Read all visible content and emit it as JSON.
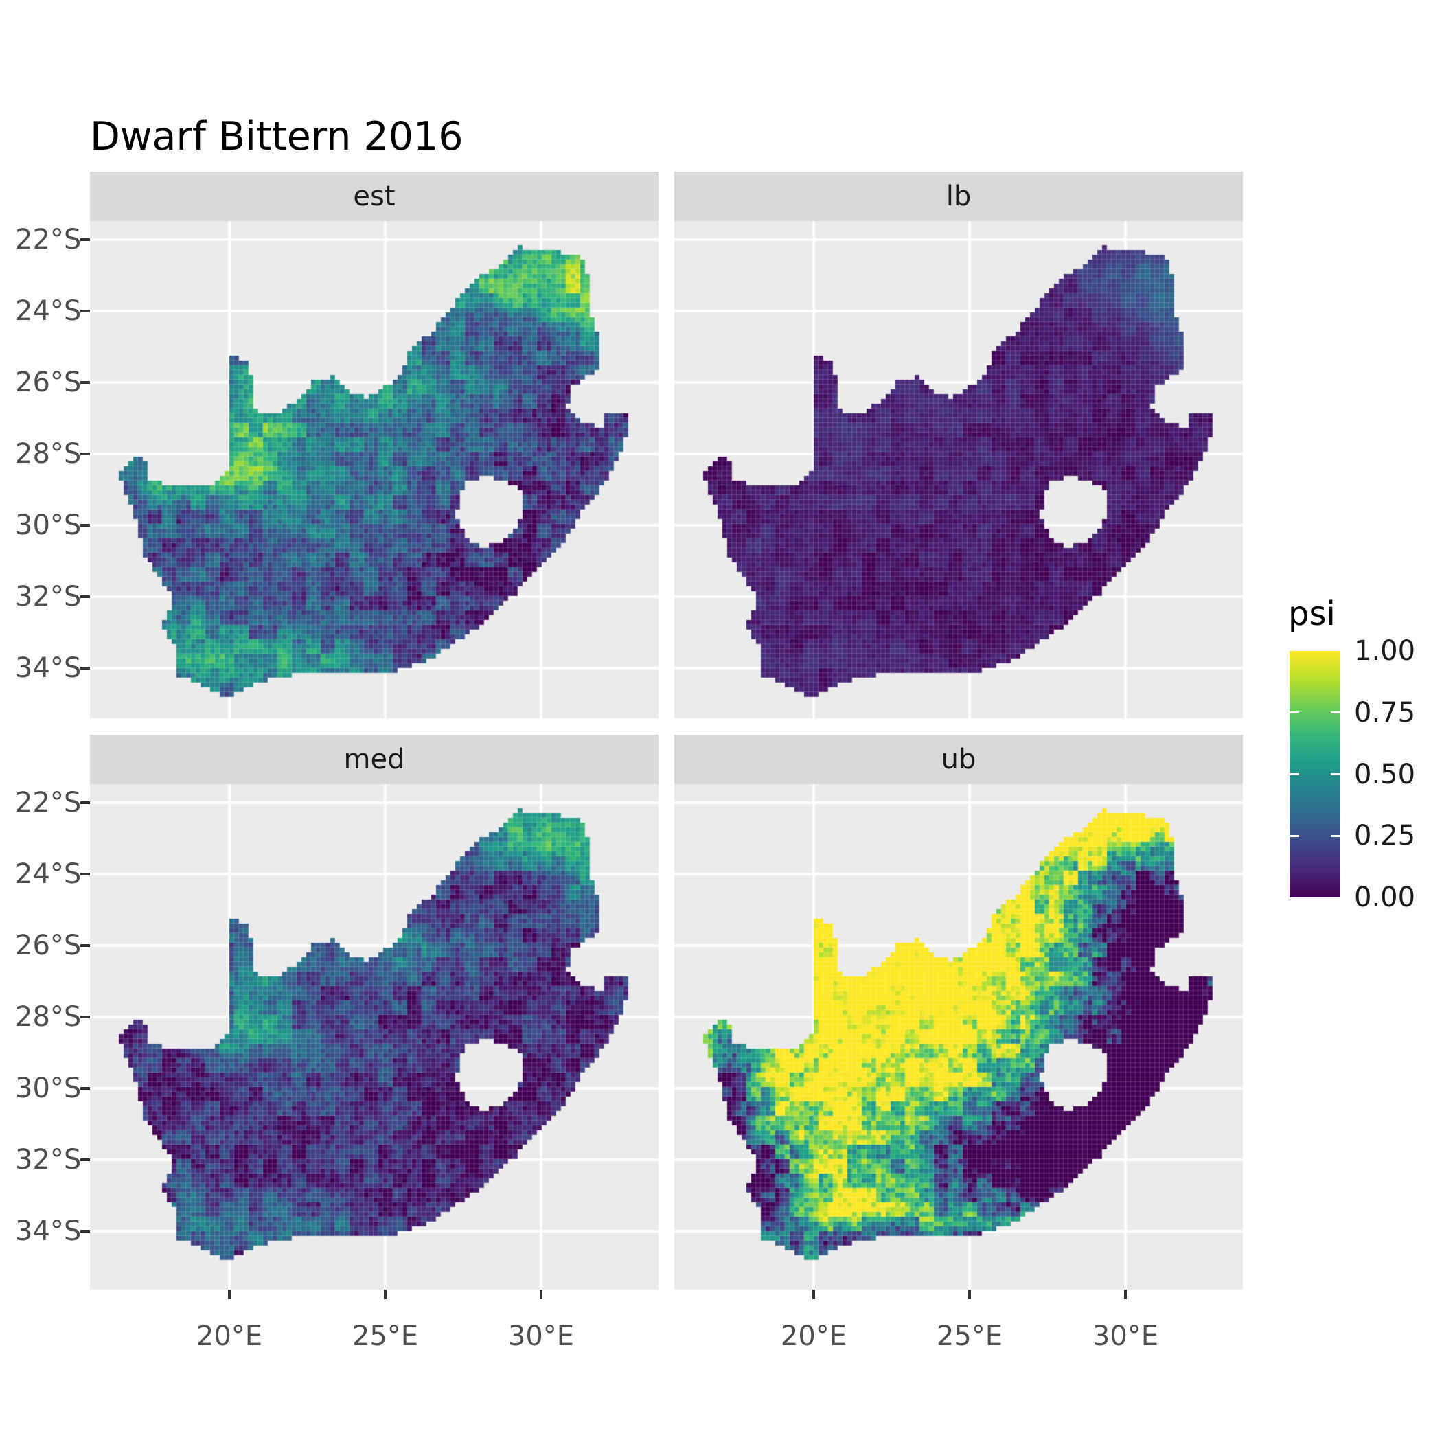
{
  "title": "Dwarf Bittern 2016",
  "colors": {
    "background": "#ffffff",
    "panel_bg": "#ebebeb",
    "strip_bg": "#d9d9d9",
    "gridline": "#ffffff",
    "axis_text": "#4d4d4d",
    "tick_mark": "#333333",
    "title_text": "#000000",
    "strip_text": "#1a1a1a"
  },
  "facets": [
    {
      "label": "est",
      "pattern": {
        "seed": 1,
        "base": 0.22,
        "noise": 0.33,
        "gain": 1.0,
        "blobs": [
          [
            29.4,
            23.0,
            2.1,
            0.85,
            0.48
          ],
          [
            31.4,
            23.6,
            0.9,
            1.1,
            0.3
          ],
          [
            24.8,
            26.1,
            2.6,
            0.85,
            0.28
          ],
          [
            20.8,
            27.2,
            1.0,
            1.2,
            0.38
          ],
          [
            19.3,
            28.5,
            1.4,
            0.45,
            0.34
          ],
          [
            17.8,
            28.8,
            0.8,
            0.5,
            0.3
          ],
          [
            23.5,
            28.9,
            2.4,
            1.2,
            0.2
          ],
          [
            21.6,
            33.9,
            2.3,
            0.7,
            0.33
          ],
          [
            18.8,
            33.2,
            0.7,
            0.9,
            0.25
          ],
          [
            28.7,
            31.3,
            2.2,
            1.6,
            -0.14
          ],
          [
            30.8,
            26.8,
            1.3,
            1.3,
            -0.1
          ]
        ]
      }
    },
    {
      "label": "lb",
      "pattern": {
        "seed": 2,
        "base": 0.05,
        "noise": 0.12,
        "gain": 1.0,
        "blobs": [
          [
            30.7,
            23.2,
            1.7,
            0.9,
            0.22
          ],
          [
            31.9,
            24.6,
            0.8,
            1.3,
            0.18
          ],
          [
            24.8,
            26.3,
            2.6,
            0.8,
            0.05
          ],
          [
            20.8,
            27.4,
            0.9,
            1.1,
            0.07
          ],
          [
            23.5,
            28.9,
            2.4,
            1.2,
            0.04
          ],
          [
            18.4,
            31.0,
            0.8,
            1.8,
            0.05
          ],
          [
            21.6,
            33.9,
            2.0,
            0.6,
            0.05
          ]
        ]
      }
    },
    {
      "label": "med",
      "pattern": {
        "seed": 3,
        "base": 0.1,
        "noise": 0.31,
        "gain": 1.0,
        "blobs": [
          [
            29.7,
            22.8,
            1.8,
            0.7,
            0.55
          ],
          [
            31.4,
            23.8,
            0.8,
            1.1,
            0.28
          ],
          [
            24.8,
            26.0,
            2.4,
            0.75,
            0.3
          ],
          [
            20.8,
            27.4,
            0.95,
            1.2,
            0.33
          ],
          [
            19.3,
            28.5,
            1.3,
            0.4,
            0.28
          ],
          [
            23.5,
            28.9,
            2.2,
            1.1,
            0.13
          ],
          [
            21.6,
            33.9,
            2.1,
            0.65,
            0.25
          ],
          [
            18.8,
            33.2,
            0.65,
            0.85,
            0.2
          ],
          [
            28.7,
            31.3,
            2.2,
            1.5,
            -0.08
          ]
        ]
      }
    },
    {
      "label": "ub",
      "pattern": {
        "seed": 4,
        "base": 0.88,
        "noise": 0.5,
        "gain": 1.15,
        "blobs": [
          [
            30.7,
            25.2,
            1.5,
            1.5,
            -1.0
          ],
          [
            30.2,
            29.6,
            2.0,
            1.8,
            -0.95
          ],
          [
            27.6,
            32.0,
            2.4,
            1.4,
            -0.75
          ],
          [
            31.9,
            27.6,
            1.0,
            1.3,
            -0.7
          ],
          [
            25.0,
            31.9,
            2.2,
            0.9,
            -0.4
          ],
          [
            17.3,
            30.5,
            0.65,
            1.9,
            -0.85
          ],
          [
            18.5,
            32.8,
            0.8,
            1.1,
            -0.75
          ],
          [
            22.5,
            34.5,
            3.0,
            0.5,
            -0.7
          ],
          [
            29.9,
            22.5,
            2.4,
            0.7,
            0.5
          ],
          [
            22.5,
            26.5,
            3.0,
            2.0,
            0.3
          ]
        ]
      }
    }
  ],
  "axes": {
    "y_ticks": [
      {
        "label": "22°S",
        "lat": 22
      },
      {
        "label": "24°S",
        "lat": 24
      },
      {
        "label": "26°S",
        "lat": 26
      },
      {
        "label": "28°S",
        "lat": 28
      },
      {
        "label": "30°S",
        "lat": 30
      },
      {
        "label": "32°S",
        "lat": 32
      },
      {
        "label": "34°S",
        "lat": 34
      }
    ],
    "x_ticks": [
      {
        "label": "20°E",
        "lon": 20
      },
      {
        "label": "25°E",
        "lon": 25
      },
      {
        "label": "30°E",
        "lon": 30
      }
    ]
  },
  "legend": {
    "title": "psi",
    "breaks": [
      {
        "label": "1.00",
        "value": 1.0
      },
      {
        "label": "0.75",
        "value": 0.75
      },
      {
        "label": "0.50",
        "value": 0.5
      },
      {
        "label": "0.25",
        "value": 0.25
      },
      {
        "label": "0.00",
        "value": 0.0
      }
    ],
    "bar_tick_values": [
      0.25,
      0.5,
      0.75
    ]
  },
  "chart_data": {
    "type": "heatmap",
    "subtype": "faceted raster occupancy maps of South Africa (ggplot2 style)",
    "title": "Dwarf Bittern 2016",
    "facet_labels": [
      "est",
      "lb",
      "med",
      "ub"
    ],
    "fill_variable": "psi",
    "fill_range": [
      0.0,
      1.0
    ],
    "legend_breaks": [
      0.0,
      0.25,
      0.5,
      0.75,
      1.0
    ],
    "legend_position": "right",
    "x_axis": {
      "tick_labels": [
        "20°E",
        "25°E",
        "30°E"
      ],
      "range_lon_east": [
        15.53,
        33.77
      ]
    },
    "y_axis": {
      "tick_labels": [
        "22°S",
        "24°S",
        "26°S",
        "28°S",
        "30°S",
        "32°S",
        "34°S"
      ],
      "range_lat_south": [
        21.48,
        35.55
      ]
    },
    "grid": {
      "lon": [
        20,
        25,
        30
      ],
      "lat": [
        22,
        24,
        26,
        28,
        30,
        32,
        34
      ],
      "major_color": "#ffffff",
      "panel_bg": "#ebebeb"
    },
    "facet_summaries": {
      "est": "moderate psi: dark purple base with teal/green band across Kalahari and northern rim, yellow-green along far northeast (Limpopo) and Orange River, teal along south coast",
      "lb": "near-zero psi everywhere (dark purple), faint teal speckle in northeast lobe",
      "med": "mostly low psi (dark) with green rim along northern border, yellow specks at northeast tip, teal south-coast patches",
      "ub": "high psi: widespread yellow across west/centre/north, dark purple over eastern escarpment, KwaZulu-Natal, around Lesotho and along southern/western coasts"
    },
    "colormap": {
      "name": "viridis",
      "stops": [
        [
          0,
          "#440154"
        ],
        [
          0.11,
          "#482878"
        ],
        [
          0.22,
          "#3e4989"
        ],
        [
          0.33,
          "#31688e"
        ],
        [
          0.44,
          "#26828e"
        ],
        [
          0.55,
          "#1f9e89"
        ],
        [
          0.66,
          "#35b779"
        ],
        [
          0.77,
          "#6dcd59"
        ],
        [
          0.88,
          "#b4de2c"
        ],
        [
          1,
          "#fde725"
        ]
      ]
    },
    "south_africa_outline_lon_latS": [
      [
        16.45,
        28.6
      ],
      [
        16.8,
        28.3
      ],
      [
        17.05,
        28.05
      ],
      [
        17.35,
        28.2
      ],
      [
        17.4,
        28.7
      ],
      [
        18.0,
        28.87
      ],
      [
        18.75,
        28.85
      ],
      [
        19.25,
        28.93
      ],
      [
        19.7,
        28.75
      ],
      [
        19.98,
        28.42
      ],
      [
        19.99,
        25.15
      ],
      [
        20.55,
        25.4
      ],
      [
        20.75,
        26.0
      ],
      [
        20.85,
        26.8
      ],
      [
        21.6,
        26.85
      ],
      [
        22.3,
        26.4
      ],
      [
        22.75,
        25.9
      ],
      [
        23.35,
        25.85
      ],
      [
        23.9,
        26.3
      ],
      [
        24.4,
        26.4
      ],
      [
        24.9,
        26.2
      ],
      [
        25.55,
        25.75
      ],
      [
        25.8,
        25.05
      ],
      [
        26.4,
        24.65
      ],
      [
        26.9,
        24.2
      ],
      [
        27.3,
        23.7
      ],
      [
        28.0,
        23.05
      ],
      [
        28.8,
        22.65
      ],
      [
        29.3,
        22.2
      ],
      [
        30.0,
        22.3
      ],
      [
        30.6,
        22.35
      ],
      [
        31.3,
        22.4
      ],
      [
        31.55,
        23.2
      ],
      [
        31.55,
        24.0
      ],
      [
        31.9,
        24.8
      ],
      [
        31.95,
        25.6
      ],
      [
        31.45,
        25.85
      ],
      [
        30.95,
        26.15
      ],
      [
        30.85,
        26.65
      ],
      [
        31.15,
        27.05
      ],
      [
        31.7,
        27.2
      ],
      [
        31.97,
        27.25
      ],
      [
        32.12,
        26.8
      ],
      [
        32.89,
        26.82
      ],
      [
        32.65,
        27.8
      ],
      [
        32.25,
        28.5
      ],
      [
        32.0,
        28.9
      ],
      [
        31.4,
        29.5
      ],
      [
        30.7,
        30.5
      ],
      [
        30.0,
        31.1
      ],
      [
        29.2,
        31.9
      ],
      [
        28.2,
        32.7
      ],
      [
        27.4,
        33.2
      ],
      [
        26.4,
        33.75
      ],
      [
        25.65,
        34.0
      ],
      [
        24.8,
        34.2
      ],
      [
        23.4,
        34.1
      ],
      [
        22.2,
        34.15
      ],
      [
        21.0,
        34.4
      ],
      [
        20.0,
        34.82
      ],
      [
        19.3,
        34.6
      ],
      [
        18.8,
        34.35
      ],
      [
        18.35,
        34.2
      ],
      [
        18.3,
        33.5
      ],
      [
        17.85,
        32.8
      ],
      [
        18.25,
        32.1
      ],
      [
        17.3,
        30.9
      ],
      [
        16.95,
        29.7
      ],
      [
        16.45,
        28.6
      ]
    ],
    "lesotho_hole_lon_latS": [
      [
        27.35,
        29.25
      ],
      [
        27.55,
        28.85
      ],
      [
        28.15,
        28.6
      ],
      [
        28.85,
        28.75
      ],
      [
        29.35,
        29.05
      ],
      [
        29.45,
        29.55
      ],
      [
        29.15,
        30.1
      ],
      [
        28.6,
        30.55
      ],
      [
        28.0,
        30.6
      ],
      [
        27.55,
        30.25
      ],
      [
        27.3,
        29.75
      ]
    ]
  }
}
